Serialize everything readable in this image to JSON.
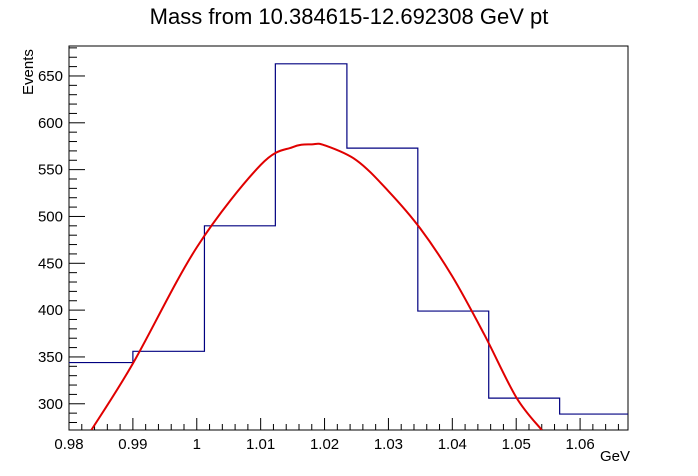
{
  "chart_data": {
    "type": "line",
    "title": "Mass from 10.384615-12.692308 GeV pt",
    "xlabel": "GeV",
    "ylabel": "Events",
    "xlim": [
      0.98,
      1.0675
    ],
    "ylim": [
      272,
      682
    ],
    "grid": false,
    "x_ticks": [
      0.98,
      0.99,
      1.0,
      1.01,
      1.02,
      1.03,
      1.04,
      1.05,
      1.06
    ],
    "x_tick_labels": [
      "0.98",
      "0.99",
      "1",
      "1.01",
      "1.02",
      "1.03",
      "1.04",
      "1.05",
      "1.06"
    ],
    "y_ticks": [
      300,
      350,
      400,
      450,
      500,
      550,
      600,
      650
    ],
    "y_tick_labels": [
      "300",
      "350",
      "400",
      "450",
      "500",
      "550",
      "600",
      "650"
    ],
    "histogram": {
      "name": "",
      "color": "#000080",
      "bin_edges": [
        0.98,
        0.99,
        1.0012,
        1.0123,
        1.0235,
        1.0346,
        1.0457,
        1.0568,
        1.0675
      ],
      "values": [
        344,
        356,
        490,
        663,
        573,
        399,
        306,
        289
      ]
    },
    "fit": {
      "name": "",
      "color": "#e00000",
      "x": [
        0.9835,
        0.99,
        1.0,
        1.01,
        1.015,
        1.018,
        1.02,
        1.025,
        1.03,
        1.035,
        1.04,
        1.045,
        1.05,
        1.054
      ],
      "y": [
        272,
        343,
        467,
        555,
        574,
        577,
        576,
        560,
        527,
        487,
        436,
        374,
        307,
        272
      ]
    }
  }
}
